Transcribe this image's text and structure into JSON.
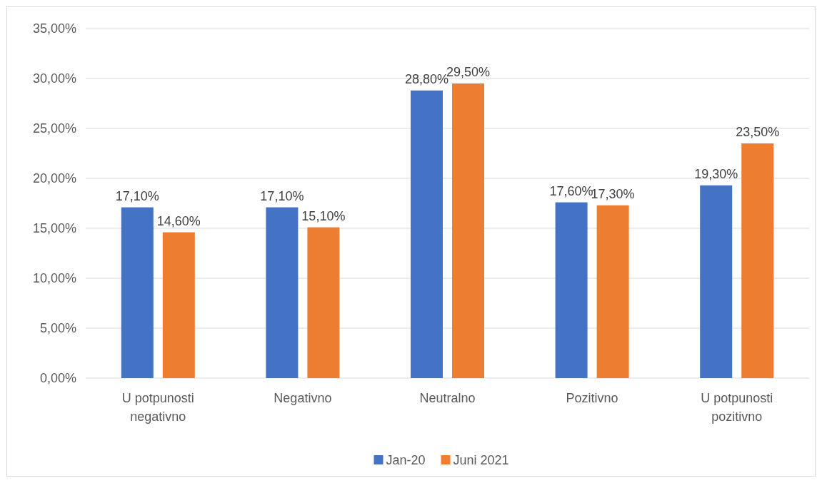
{
  "chart_data": {
    "type": "bar",
    "categories": [
      "U potpunosti negativno",
      "Negativno",
      "Neutralno",
      "Pozitivno",
      "U potpunosti pozitivno"
    ],
    "series": [
      {
        "name": "Jan-20",
        "color": "#4472c4",
        "values": [
          17.1,
          17.1,
          28.8,
          17.6,
          19.3
        ],
        "value_labels": [
          "17,10%",
          "17,10%",
          "28,80%",
          "17,60%",
          "19,30%"
        ]
      },
      {
        "name": "Juni 2021",
        "color": "#ed7d31",
        "values": [
          14.6,
          15.1,
          29.5,
          17.3,
          23.5
        ],
        "value_labels": [
          "14,60%",
          "15,10%",
          "29,50%",
          "17,30%",
          "23,50%"
        ]
      }
    ],
    "ylim": [
      0,
      35
    ],
    "yticks": [
      {
        "value": 0,
        "label": "0,00%"
      },
      {
        "value": 5,
        "label": "5,00%"
      },
      {
        "value": 10,
        "label": "10,00%"
      },
      {
        "value": 15,
        "label": "15,00%"
      },
      {
        "value": 20,
        "label": "20,00%"
      },
      {
        "value": 25,
        "label": "25,00%"
      },
      {
        "value": 30,
        "label": "30,00%"
      },
      {
        "value": 35,
        "label": "35,00%"
      }
    ],
    "grid": "y",
    "legend": "bottom"
  }
}
